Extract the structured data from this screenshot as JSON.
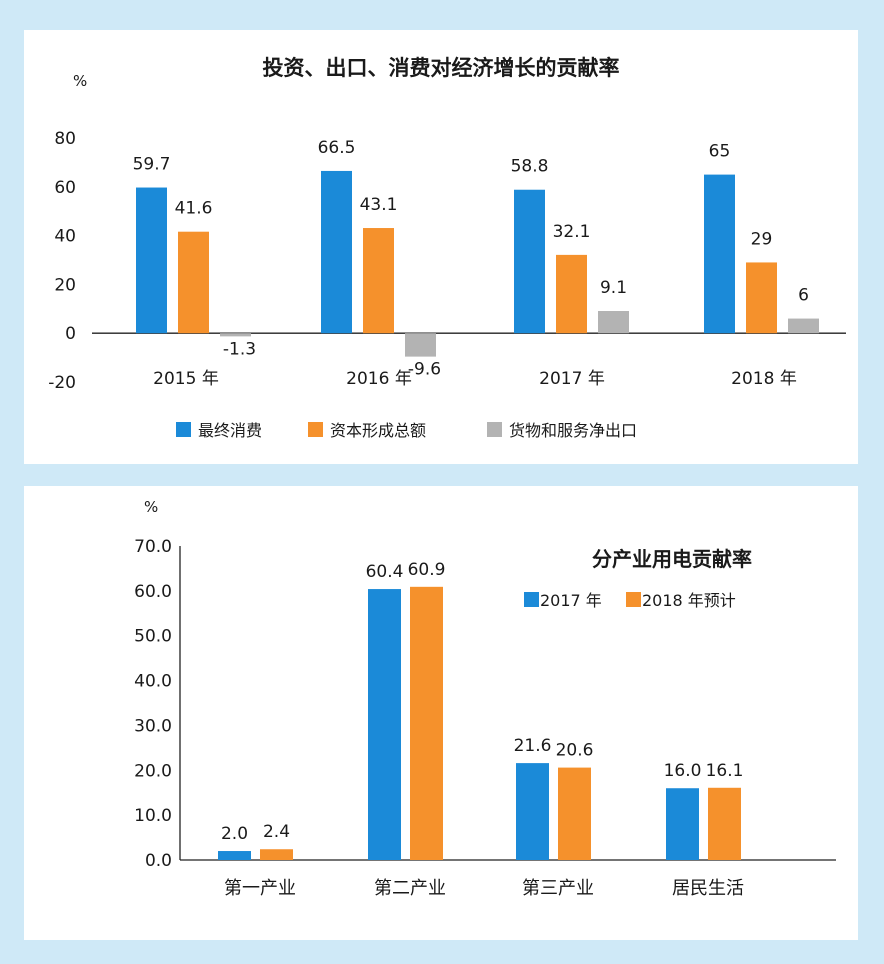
{
  "chart_data": [
    {
      "type": "bar",
      "title": "投资、出口、消费对经济增长的贡献率",
      "ylabel": "%",
      "xlabel": "",
      "ylim": [
        -20,
        80
      ],
      "yticks": [
        "80",
        "60",
        "40",
        "20",
        "0",
        "-20"
      ],
      "categories": [
        "2015 年",
        "2016 年",
        "2017 年",
        "2018 年"
      ],
      "series": [
        {
          "name": "最终消费",
          "color": "#1b8ad8",
          "values": [
            59.7,
            66.5,
            58.8,
            65
          ],
          "labels": [
            "59.7",
            "66.5",
            "58.8",
            "65"
          ]
        },
        {
          "name": "资本形成总额",
          "color": "#f5912c",
          "values": [
            41.6,
            43.1,
            32.1,
            29
          ],
          "labels": [
            "41.6",
            "43.1",
            "32.1",
            "29"
          ]
        },
        {
          "name": "货物和服务净出口",
          "color": "#b3b3b3",
          "values": [
            -1.3,
            -9.6,
            9.1,
            6
          ],
          "labels": [
            "-1.3",
            "-9.6",
            "9.1",
            "6"
          ]
        }
      ],
      "legend_position": "bottom"
    },
    {
      "type": "bar",
      "title": "分产业用电贡献率",
      "ylabel": "%",
      "xlabel": "",
      "ylim": [
        0,
        70
      ],
      "yticks": [
        "70.0",
        "60.0",
        "50.0",
        "40.0",
        "30.0",
        "20.0",
        "10.0",
        "0.0"
      ],
      "categories": [
        "第一产业",
        "第二产业",
        "第三产业",
        "居民生活"
      ],
      "series": [
        {
          "name": "2017 年",
          "color": "#1b8ad8",
          "values": [
            2.0,
            60.4,
            21.6,
            16.0
          ],
          "labels": [
            "2.0",
            "60.4",
            "21.6",
            "16.0"
          ]
        },
        {
          "name": "2018 年预计",
          "color": "#f5912c",
          "values": [
            2.4,
            60.9,
            20.6,
            16.1
          ],
          "labels": [
            "2.4",
            "60.9",
            "20.6",
            "16.1"
          ]
        }
      ],
      "legend_position": "top-right"
    }
  ]
}
